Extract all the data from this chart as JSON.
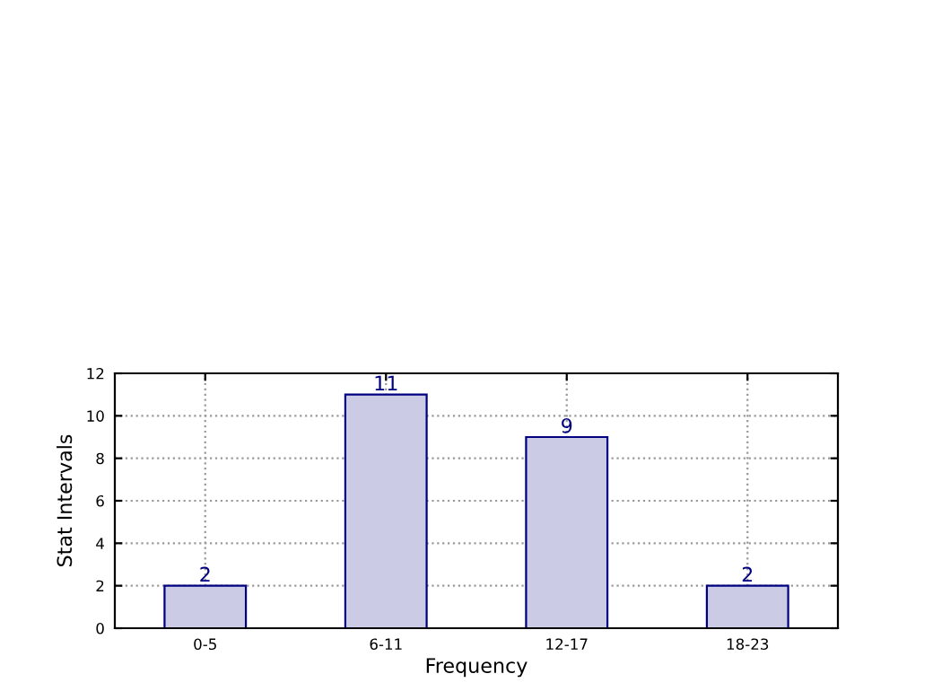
{
  "chart_data": {
    "type": "bar",
    "xlabel": "Frequency",
    "ylabel": "Stat Intervals",
    "categories": [
      "0-5",
      "6-11",
      "12-17",
      "18-23"
    ],
    "values": [
      2,
      11,
      9,
      2
    ],
    "color": "#cbcbe5",
    "ylim": [
      0,
      12
    ],
    "yticks": [
      0,
      2,
      4,
      6,
      8,
      10,
      12
    ],
    "grid": true,
    "data_labels": true
  }
}
